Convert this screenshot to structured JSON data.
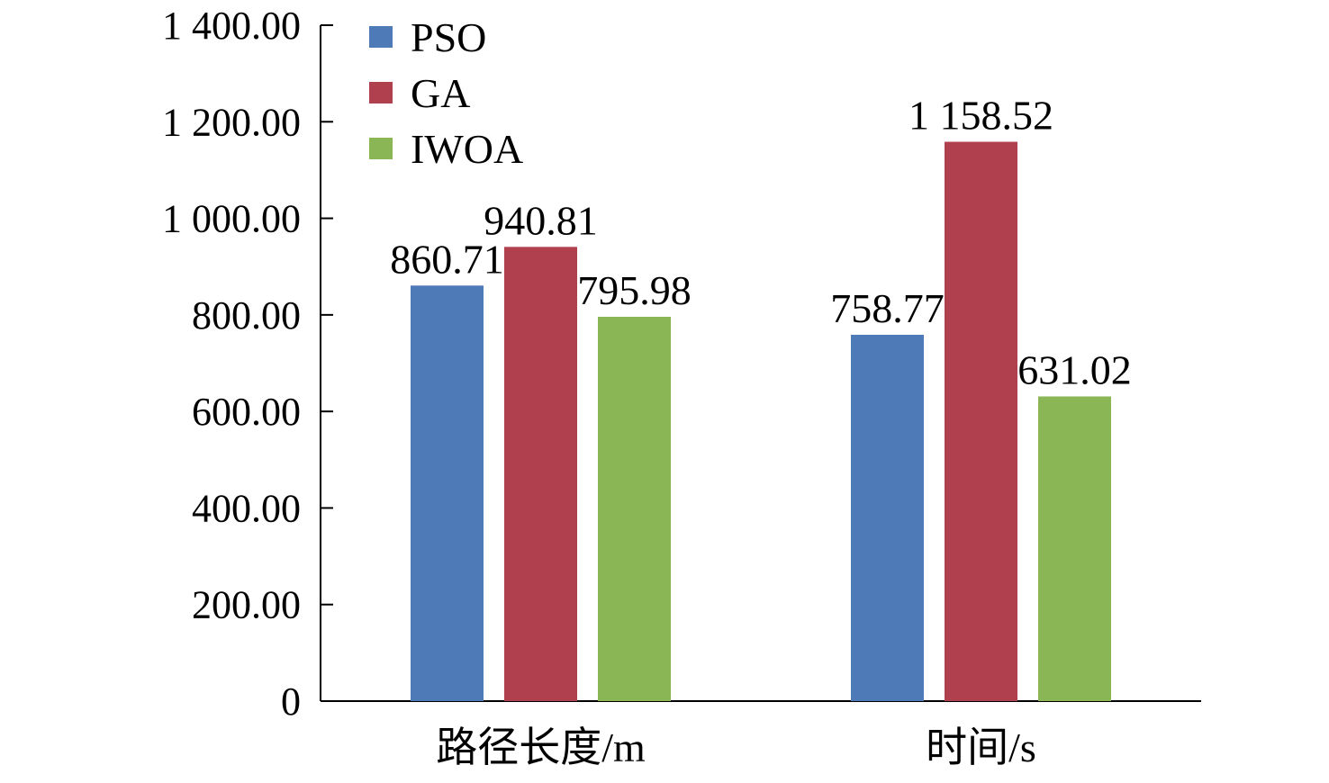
{
  "chart_data": {
    "type": "bar",
    "categories": [
      "路径长度/m",
      "时间/s"
    ],
    "series": [
      {
        "name": "PSO",
        "color": "#4F7AB8",
        "values": [
          860.71,
          758.77
        ],
        "labels": [
          "860.71",
          "758.77"
        ]
      },
      {
        "name": "GA",
        "color": "#B0404E",
        "values": [
          940.81,
          1158.52
        ],
        "labels": [
          "940.81",
          "1 158.52"
        ]
      },
      {
        "name": "IWOA",
        "color": "#8AB655",
        "values": [
          795.98,
          631.02
        ],
        "labels": [
          "795.98",
          "631.02"
        ]
      }
    ],
    "ylim": [
      0,
      1400
    ],
    "yticks": [
      0,
      200,
      400,
      600,
      800,
      1000,
      1200,
      1400
    ],
    "ytick_labels": [
      "0",
      "200.00",
      "400.00",
      "600.00",
      "800.00",
      "1 000.00",
      "1 200.00",
      "1 400.00"
    ],
    "title": "",
    "xlabel": "",
    "ylabel": "",
    "grid": false,
    "legend_position": "top-left"
  }
}
